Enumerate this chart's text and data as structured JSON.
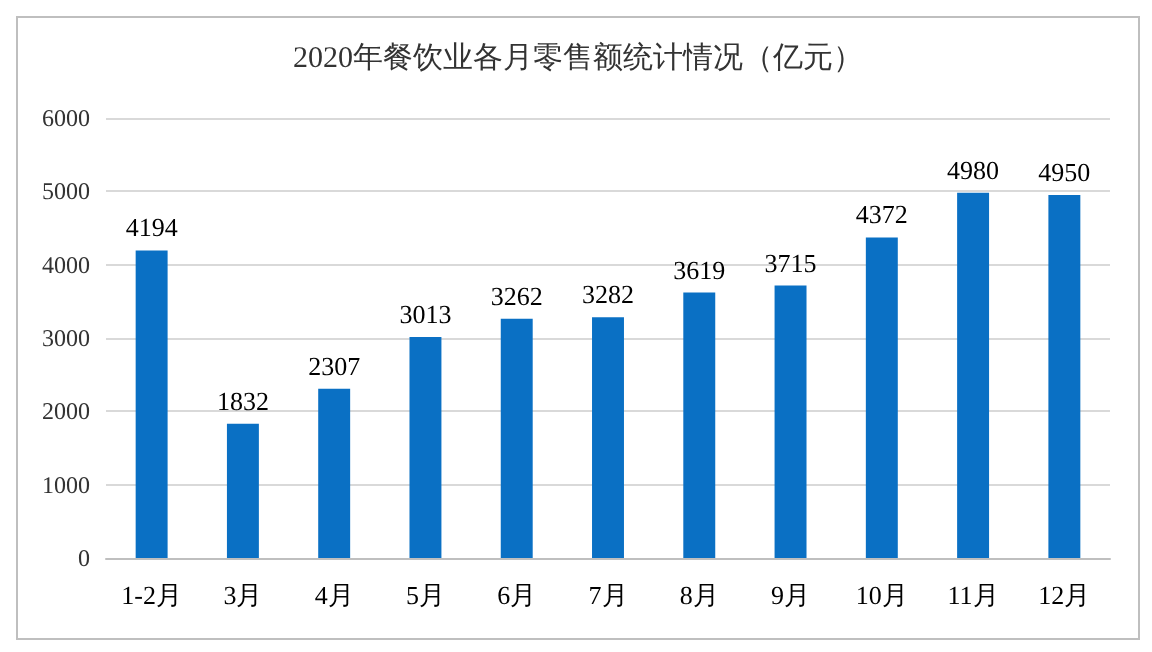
{
  "chart_data": {
    "type": "bar",
    "title": "2020年餐饮业各月零售额统计情况（亿元）",
    "categories": [
      "1-2月",
      "3月",
      "4月",
      "5月",
      "6月",
      "7月",
      "8月",
      "9月",
      "10月",
      "11月",
      "12月"
    ],
    "values": [
      4194,
      1832,
      2307,
      3013,
      3262,
      3282,
      3619,
      3715,
      4372,
      4980,
      4950
    ],
    "color": "#0a70c4",
    "ylim": [
      0,
      6000
    ],
    "yticks": [
      0,
      1000,
      2000,
      3000,
      4000,
      5000,
      6000
    ],
    "grid": "y",
    "data_labels": true
  }
}
